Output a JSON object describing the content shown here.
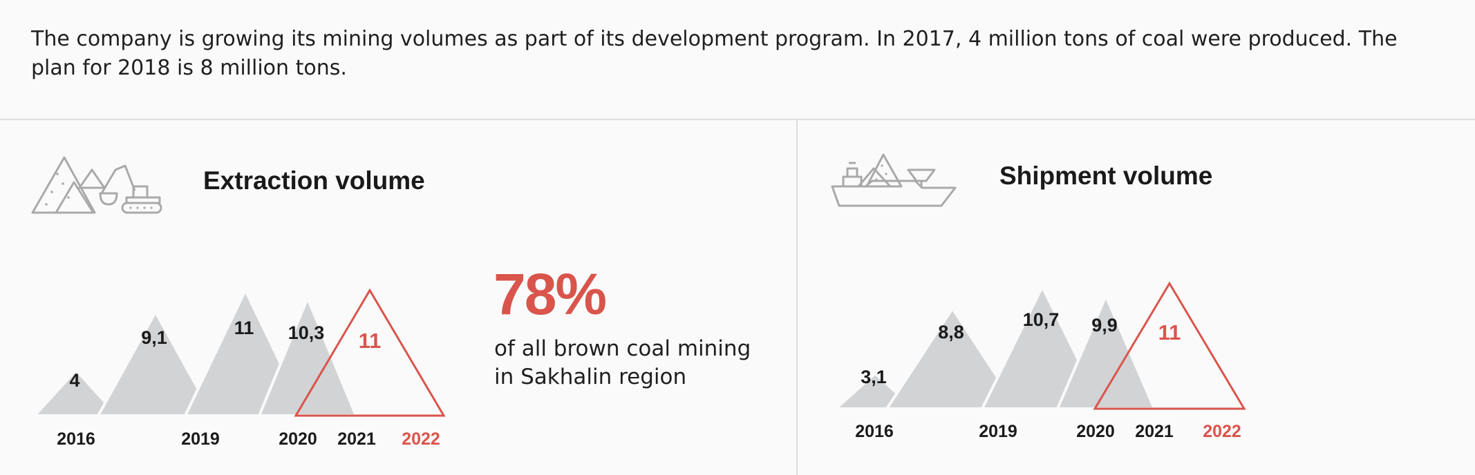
{
  "intro": {
    "text": "The company is growing its mining volumes as part of its development program. In 2017, 4 million tons of coal were produced. The plan for 2018 is 8 million tons."
  },
  "colors": {
    "actual": "#d2d3d5",
    "plan": "#d9544b",
    "label": "#1a1a1a",
    "divider": "#dedede"
  },
  "extraction": {
    "title": "Extraction volume",
    "icon": "mining-excavator-icon",
    "highlight": {
      "value": "78%",
      "caption": "of all brown coal mining in Sakhalin region"
    }
  },
  "shipment": {
    "title": "Shipment volume",
    "icon": "cargo-ship-icon"
  },
  "chart_data": [
    {
      "type": "bar",
      "title": "Extraction volume",
      "categories": [
        "2016",
        "2019",
        "2020",
        "2021",
        "2022"
      ],
      "values": [
        4,
        9.1,
        11,
        10.3,
        11
      ],
      "value_labels": [
        "4",
        "9,1",
        "11",
        "10,3",
        "11"
      ],
      "planned": [
        false,
        false,
        false,
        false,
        true
      ],
      "marks": "triangles"
    },
    {
      "type": "bar",
      "title": "Shipment volume",
      "categories": [
        "2016",
        "2019",
        "2020",
        "2021",
        "2022"
      ],
      "values": [
        3.1,
        8.8,
        10.7,
        9.9,
        11
      ],
      "value_labels": [
        "3,1",
        "8,8",
        "10,7",
        "9,9",
        "11"
      ],
      "planned": [
        false,
        false,
        false,
        false,
        true
      ],
      "marks": "triangles"
    }
  ]
}
